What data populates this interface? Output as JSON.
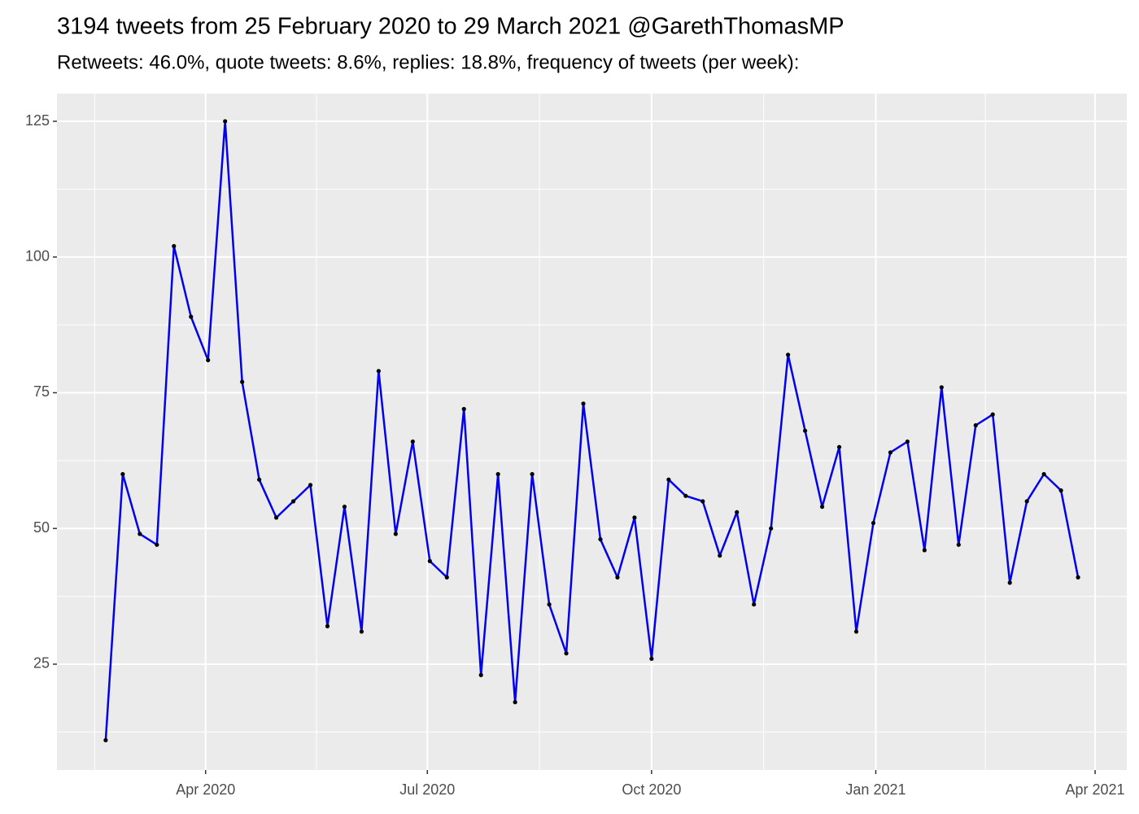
{
  "chart_data": {
    "type": "line",
    "title": "3194 tweets from 25 February 2020 to 29 March 2021 @GarethThomasMP",
    "subtitle": "Retweets: 46.0%, quote tweets: 8.6%, replies: 18.8%, frequency of tweets (per week):",
    "x": [
      "2020-02-20",
      "2020-02-27",
      "2020-03-05",
      "2020-03-12",
      "2020-03-19",
      "2020-03-26",
      "2020-04-02",
      "2020-04-09",
      "2020-04-16",
      "2020-04-23",
      "2020-04-30",
      "2020-05-07",
      "2020-05-14",
      "2020-05-21",
      "2020-05-28",
      "2020-06-04",
      "2020-06-11",
      "2020-06-18",
      "2020-06-25",
      "2020-07-02",
      "2020-07-09",
      "2020-07-16",
      "2020-07-23",
      "2020-07-30",
      "2020-08-06",
      "2020-08-13",
      "2020-08-20",
      "2020-08-27",
      "2020-09-03",
      "2020-09-10",
      "2020-09-17",
      "2020-09-24",
      "2020-10-01",
      "2020-10-08",
      "2020-10-15",
      "2020-10-22",
      "2020-10-29",
      "2020-11-05",
      "2020-11-12",
      "2020-11-19",
      "2020-11-26",
      "2020-12-03",
      "2020-12-10",
      "2020-12-17",
      "2020-12-24",
      "2020-12-31",
      "2021-01-07",
      "2021-01-14",
      "2021-01-21",
      "2021-01-28",
      "2021-02-04",
      "2021-02-11",
      "2021-02-18",
      "2021-02-25",
      "2021-03-04",
      "2021-03-11",
      "2021-03-18",
      "2021-03-25"
    ],
    "values": [
      11,
      60,
      49,
      47,
      102,
      89,
      81,
      125,
      77,
      59,
      52,
      55,
      58,
      32,
      54,
      31,
      79,
      49,
      66,
      44,
      41,
      72,
      23,
      60,
      18,
      60,
      36,
      27,
      73,
      48,
      41,
      52,
      26,
      59,
      56,
      55,
      45,
      53,
      36,
      50,
      82,
      68,
      54,
      65,
      31,
      51,
      64,
      66,
      46,
      76,
      47,
      69,
      71,
      40,
      55,
      60,
      57,
      41
    ],
    "color": "#0000ee",
    "marker_color": "#000000",
    "xlim": [
      "2020-01-31",
      "2021-04-14"
    ],
    "xticks": [
      {
        "value": "2020-04-01",
        "label": "Apr 2020"
      },
      {
        "value": "2020-07-01",
        "label": "Jul 2020"
      },
      {
        "value": "2020-10-01",
        "label": "Oct 2020"
      },
      {
        "value": "2021-01-01",
        "label": "Jan 2021"
      },
      {
        "value": "2021-04-01",
        "label": "Apr 2021"
      }
    ],
    "ylim": [
      5.5,
      130.1
    ],
    "yticks": [
      25,
      50,
      75,
      100,
      125
    ],
    "grid": true
  }
}
